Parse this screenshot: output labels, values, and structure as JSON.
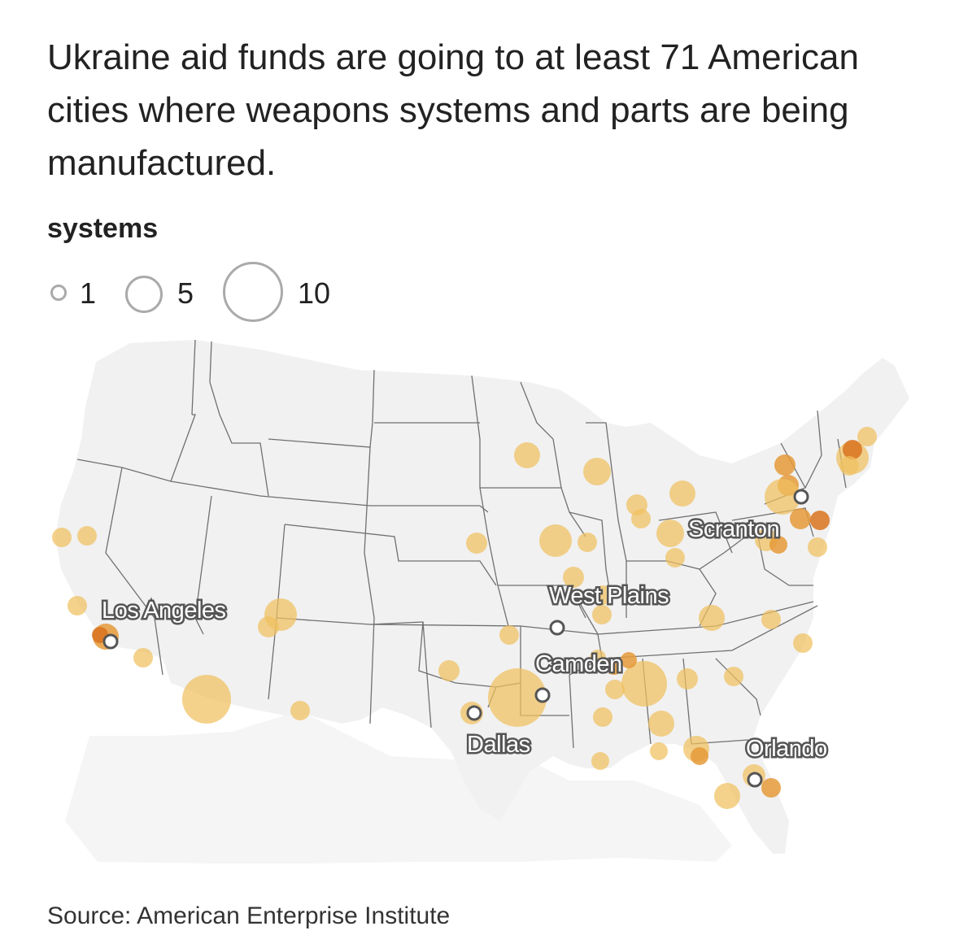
{
  "headline": "Ukraine aid funds are going to at least 71 American cities where weapons systems and parts are being manufactured.",
  "legend": {
    "title": "systems",
    "items": [
      {
        "label": "1",
        "value": 1
      },
      {
        "label": "5",
        "value": 5
      },
      {
        "label": "10",
        "value": 10
      }
    ]
  },
  "source": "Source: American Enterprise Institute",
  "colors": {
    "bubble": "#f0c060",
    "bubble_dark": "#e08a2a",
    "land": "#f2f2f2",
    "borders": "#707070",
    "label_stroke": "#555555",
    "marker": "#ffffff"
  },
  "highlighted_cities": [
    {
      "name": "Los Angeles"
    },
    {
      "name": "Scranton"
    },
    {
      "name": "West Plains"
    },
    {
      "name": "Camden"
    },
    {
      "name": "Dallas"
    },
    {
      "name": "Orlando"
    }
  ]
}
